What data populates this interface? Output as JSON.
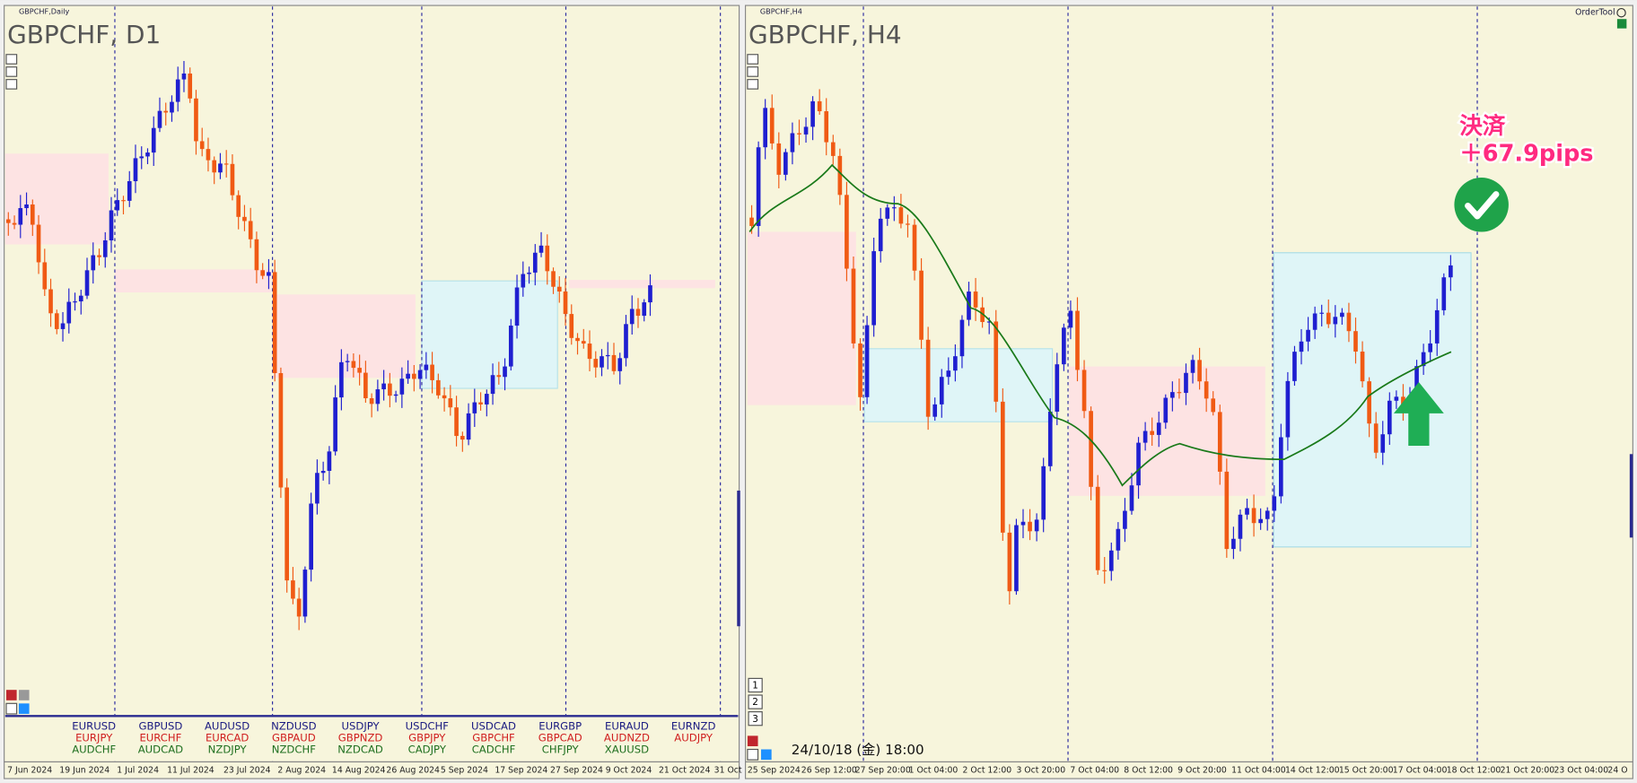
{
  "left_chart": {
    "symbol_small": "GBPCHF,Daily",
    "title": "GBPCHF, D1",
    "x_labels": [
      "7 Jun 2024",
      "19 Jun 2024",
      "1 Jul 2024",
      "11 Jul 2024",
      "23 Jul 2024",
      "2 Aug 2024",
      "14 Aug 2024",
      "26 Aug 2024",
      "5 Sep 2024",
      "17 Sep 2024",
      "27 Sep 2024",
      "9 Oct 2024",
      "21 Oct 2024",
      "31 Oct"
    ],
    "symbol_buttons": [
      [
        "EURUSD",
        "EURJPY",
        "AUDCHF"
      ],
      [
        "GBPUSD",
        "EURCHF",
        "AUDCAD"
      ],
      [
        "AUDUSD",
        "EURCAD",
        "NZDJPY"
      ],
      [
        "NZDUSD",
        "GBPAUD",
        "NZDCHF"
      ],
      [
        "USDJPY",
        "GBPNZD",
        "NZDCAD"
      ],
      [
        "USDCHF",
        "GBPJPY",
        "CADJPY"
      ],
      [
        "USDCAD",
        "GBPCHF",
        "CADCHF"
      ],
      [
        "EURGBP",
        "GBPCAD",
        "CHFJPY"
      ],
      [
        "EURAUD",
        "AUDNZD",
        "XAUUSD"
      ],
      [
        "EURNZD",
        "AUDJPY"
      ]
    ]
  },
  "right_chart": {
    "symbol_small": "GBPCHF,H4",
    "title": "GBPCHF, H4",
    "tool": "OrderTool",
    "timestamp": "24/10/18 (金) 18:00",
    "annotation": [
      "決済",
      "＋67.9pips"
    ],
    "page_buttons": [
      "1",
      "2",
      "3"
    ],
    "x_labels": [
      "25 Sep 2024",
      "26 Sep 12:00",
      "27 Sep 20:00",
      "1 Oct 04:00",
      "2 Oct 12:00",
      "3 Oct 20:00",
      "7 Oct 04:00",
      "8 Oct 12:00",
      "9 Oct 20:00",
      "11 Oct 04:00",
      "14 Oct 12:00",
      "15 Oct 20:00",
      "17 Oct 04:00",
      "18 Oct 12:00",
      "21 Oct 20:00",
      "23 Oct 04:00",
      "24 O"
    ]
  }
}
